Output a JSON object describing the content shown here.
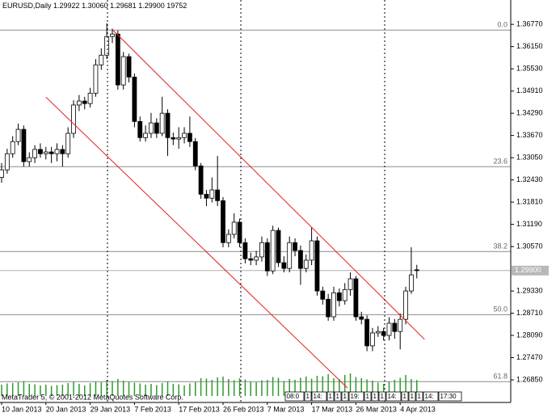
{
  "chart_data": {
    "type": "candlestick",
    "header": {
      "symbol": "EURUSD,Daily",
      "values": [
        {
          "value": 1.29922,
          "label": "1.29922"
        },
        {
          "value": 1.3006,
          "label": "1.30060"
        },
        {
          "value": 1.29681,
          "label": "1.29681"
        },
        {
          "value": 1.299,
          "label": "1.29900"
        },
        19752
      ]
    },
    "categories": [
      "10 Jan 2013",
      null,
      null,
      null,
      null,
      null,
      null,
      null,
      "20 Jan 2013",
      null,
      null,
      null,
      null,
      null,
      null,
      null,
      "29 Jan 2013",
      null,
      null,
      null,
      null,
      null,
      null,
      null,
      "7 Feb 2013",
      null,
      null,
      null,
      null,
      null,
      null,
      null,
      "17 Feb 2013",
      null,
      null,
      null,
      null,
      null,
      null,
      null,
      "26 Feb 2013",
      null,
      null,
      null,
      null,
      null,
      null,
      null,
      "7 Mar 2013",
      null,
      null,
      null,
      null,
      null,
      null,
      null,
      "17 Mar 2013",
      null,
      null,
      null,
      null,
      null,
      null,
      null,
      "26 Mar 2013",
      null,
      null,
      null,
      null,
      null,
      null,
      null,
      "4 Apr 2013",
      null,
      null,
      null
    ],
    "open": [
      1.325,
      1.3271,
      1.3316,
      1.335,
      1.3384,
      1.3294,
      1.3305,
      1.3328,
      1.3316,
      1.3321,
      1.3316,
      1.3328,
      1.3316,
      1.3373,
      1.3452,
      1.3463,
      1.3456,
      1.3485,
      1.3564,
      1.3591,
      1.3643,
      1.365,
      1.3508,
      1.3587,
      1.353,
      1.3406,
      1.3361,
      1.3373,
      1.3402,
      1.3373,
      1.3429,
      1.3361,
      1.3357,
      1.3361,
      1.3373,
      1.335,
      1.3282,
      1.3203,
      1.3192,
      1.3215,
      1.3185,
      1.3068,
      1.3091,
      1.3125,
      1.3068,
      1.3023,
      1.3019,
      1.3028,
      1.3068,
      1.2989,
      1.3102,
      1.3012,
      1.2996,
      1.3068,
      1.3046,
      1.2996,
      1.3019,
      1.3073,
      1.2933,
      1.291,
      1.2861,
      1.2928,
      1.2906,
      1.2937,
      1.2967,
      1.2861,
      1.2854,
      1.278,
      1.2816,
      1.282,
      1.2809,
      1.2843,
      1.282,
      1.2854,
      1.2933,
      1.29922
    ],
    "high": [
      1.329,
      1.333,
      1.3365,
      1.34,
      1.3395,
      1.332,
      1.334,
      1.3345,
      1.3335,
      1.3335,
      1.3345,
      1.334,
      1.339,
      1.3465,
      1.348,
      1.3475,
      1.35,
      1.358,
      1.361,
      1.368,
      1.3665,
      1.366,
      1.36,
      1.3595,
      1.354,
      1.342,
      1.3395,
      1.343,
      1.3415,
      1.3475,
      1.344,
      1.3375,
      1.339,
      1.339,
      1.342,
      1.336,
      1.329,
      1.3215,
      1.325,
      1.331,
      1.3195,
      1.3105,
      1.315,
      1.3135,
      1.308,
      1.304,
      1.3045,
      1.3085,
      1.308,
      1.3115,
      1.311,
      1.303,
      1.3085,
      1.308,
      1.306,
      1.3035,
      1.311,
      1.3085,
      1.2945,
      1.2925,
      1.2945,
      1.294,
      1.2955,
      1.2985,
      1.2975,
      1.2875,
      1.2865,
      1.283,
      1.2835,
      1.283,
      1.286,
      1.2855,
      1.287,
      1.2945,
      1.3055,
      1.3006
    ],
    "low": [
      1.3235,
      1.326,
      1.3305,
      1.334,
      1.328,
      1.328,
      1.329,
      1.3305,
      1.33,
      1.329,
      1.3295,
      1.328,
      1.3305,
      1.336,
      1.3435,
      1.344,
      1.3445,
      1.3475,
      1.355,
      1.358,
      1.3625,
      1.3495,
      1.3495,
      1.3515,
      1.339,
      1.335,
      1.335,
      1.336,
      1.336,
      1.3365,
      1.331,
      1.334,
      1.333,
      1.3345,
      1.3335,
      1.327,
      1.319,
      1.317,
      1.318,
      1.317,
      1.3055,
      1.3055,
      1.308,
      1.3055,
      1.301,
      1.3005,
      1.3005,
      1.3015,
      1.2975,
      1.298,
      1.3,
      1.2985,
      1.2985,
      1.303,
      1.295,
      1.2985,
      1.3005,
      1.292,
      1.2895,
      1.285,
      1.285,
      1.289,
      1.2895,
      1.292,
      1.285,
      1.284,
      1.2765,
      1.2765,
      1.2805,
      1.2795,
      1.2795,
      1.28,
      1.277,
      1.284,
      1.2925,
      1.29681
    ],
    "close": [
      1.3271,
      1.3316,
      1.335,
      1.3384,
      1.3294,
      1.3305,
      1.3328,
      1.3316,
      1.3321,
      1.3316,
      1.3328,
      1.3316,
      1.3373,
      1.3452,
      1.3463,
      1.3456,
      1.3485,
      1.3564,
      1.3591,
      1.3643,
      1.365,
      1.3508,
      1.3587,
      1.353,
      1.3406,
      1.3361,
      1.3373,
      1.3402,
      1.3373,
      1.3429,
      1.3361,
      1.3357,
      1.3361,
      1.3373,
      1.335,
      1.3282,
      1.3203,
      1.3192,
      1.3215,
      1.3185,
      1.3068,
      1.3091,
      1.3125,
      1.3068,
      1.3023,
      1.3019,
      1.3028,
      1.3068,
      1.2989,
      1.3102,
      1.3012,
      1.2996,
      1.3068,
      1.3046,
      1.2996,
      1.3019,
      1.3073,
      1.2933,
      1.291,
      1.2861,
      1.2928,
      1.2906,
      1.2937,
      1.2967,
      1.2861,
      1.2854,
      1.278,
      1.2816,
      1.282,
      1.2809,
      1.2843,
      1.282,
      1.2854,
      1.2933,
      1.2978,
      1.299
    ],
    "volumes": [
      14000,
      15500,
      16000,
      17000,
      18500,
      15000,
      14500,
      13000,
      14000,
      12500,
      13500,
      14000,
      16000,
      17500,
      15000,
      13000,
      16000,
      18000,
      17000,
      20000,
      18500,
      21000,
      19000,
      17500,
      16500,
      15500,
      14000,
      15000,
      13500,
      16000,
      18000,
      15000,
      14500,
      13000,
      15500,
      17000,
      22000,
      21500,
      20000,
      23000,
      24000,
      21000,
      19500,
      22000,
      20500,
      18000,
      17000,
      19500,
      20000,
      23500,
      22500,
      18500,
      21000,
      20000,
      22500,
      24000,
      21500,
      25000,
      24500,
      27000,
      22000,
      21000,
      26000,
      28000,
      23500,
      22000,
      20500,
      19000,
      16500,
      15000,
      17500,
      20000,
      22500,
      26000,
      21000,
      19752
    ],
    "volume_color": "#2f9a2f",
    "volume_lim": [
      0,
      30000
    ],
    "up_color": "#ffffff",
    "down_color": "#000000",
    "ylim": [
      1.264,
      1.3736
    ],
    "yticks": [
      {
        "value": 1.3677,
        "label": "1.36770"
      },
      {
        "value": 1.3615,
        "label": "1.36150"
      },
      {
        "value": 1.3553,
        "label": "1.35530"
      },
      {
        "value": 1.3491,
        "label": "1.34910"
      },
      {
        "value": 1.3429,
        "label": "1.34290"
      },
      {
        "value": 1.3367,
        "label": "1.33670"
      },
      {
        "value": 1.3305,
        "label": "1.33050"
      },
      {
        "value": 1.3243,
        "label": "1.32430"
      },
      {
        "value": 1.3181,
        "label": "1.31810"
      },
      {
        "value": 1.3119,
        "label": "1.31190"
      },
      {
        "value": 1.3057,
        "label": "1.30570"
      },
      {
        "value": 1.2933,
        "label": "1.29330"
      },
      {
        "value": 1.2871,
        "label": "1.28710"
      },
      {
        "value": 1.2809,
        "label": "1.28090"
      },
      {
        "value": 1.2747,
        "label": "1.27470"
      },
      {
        "value": 1.2685,
        "label": "1.26850"
      }
    ],
    "last_price": {
      "value": 1.299,
      "label": "1.29900"
    },
    "fib_levels": [
      {
        "value": 1.3661,
        "label": "0.0"
      },
      {
        "value": 1.328,
        "label": "23.6"
      },
      {
        "value": 1.3043,
        "label": "38.2"
      },
      {
        "value": 1.2867,
        "label": "50.0"
      },
      {
        "value": 1.268,
        "label": "61.8"
      }
    ],
    "trendlines": [
      {
        "color": "#e02020",
        "x": [
          8.0,
          62.5
        ],
        "y": [
          1.3474,
          1.2662
        ]
      },
      {
        "color": "#e02020",
        "x": [
          20.1,
          76.4
        ],
        "y": [
          1.3661,
          1.2798
        ]
      }
    ],
    "events": [
      "08:0",
      "1",
      "14:",
      "1",
      "1",
      "1",
      "19:",
      "1",
      "1",
      "1",
      "14:",
      "1",
      "1",
      "1",
      "14:",
      "17:30"
    ],
    "footer": "MetaTrader 5, © 2001-2012 MetaQuotes Software Corp."
  }
}
